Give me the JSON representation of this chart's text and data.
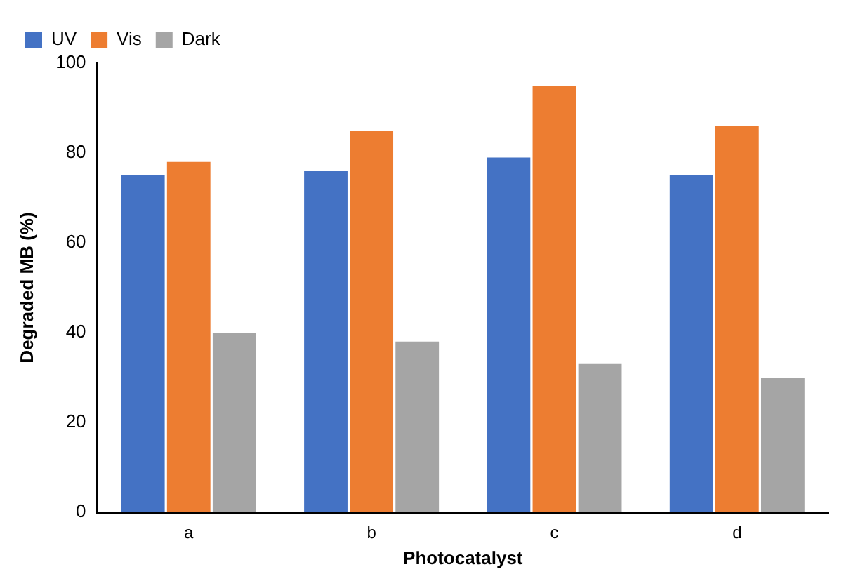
{
  "chart_data": {
    "type": "bar",
    "xlabel": "Photocatalyst",
    "ylabel": "Degraded MB (%)",
    "categories": [
      "a",
      "b",
      "c",
      "d"
    ],
    "series": [
      {
        "name": "UV",
        "color": "#4472c4",
        "values": [
          75,
          76,
          79,
          75
        ]
      },
      {
        "name": "Vis",
        "color": "#ed7d31",
        "values": [
          78,
          85,
          95,
          86
        ]
      },
      {
        "name": "Dark",
        "color": "#a5a5a5",
        "values": [
          40,
          38,
          33,
          30
        ]
      }
    ],
    "ylim": [
      0,
      100
    ],
    "yticks": [
      0,
      20,
      40,
      60,
      80,
      100
    ],
    "grid": false,
    "legend": "top left"
  }
}
